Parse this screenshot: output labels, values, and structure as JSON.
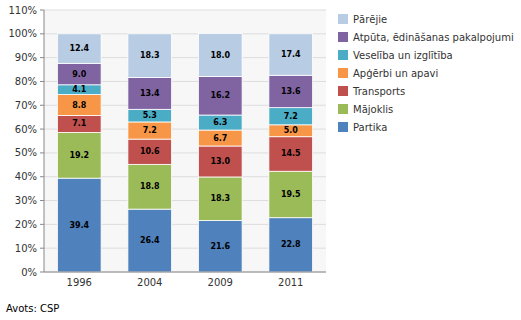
{
  "chart_data": {
    "type": "bar",
    "stacked": true,
    "data_labels": true,
    "grid": true,
    "legend": "right",
    "source": "Avots: CSP",
    "categories": [
      "1996",
      "2004",
      "2009",
      "2011"
    ],
    "series": [
      {
        "name": "Partika",
        "color": "#4F81BD",
        "values": [
          39.4,
          26.4,
          21.6,
          22.8
        ],
        "value_labels": [
          "39.4",
          "26.4",
          "21.6",
          "22.8"
        ]
      },
      {
        "name": "Mājoklis",
        "color": "#9BBB59",
        "values": [
          19.2,
          18.8,
          18.3,
          19.5
        ],
        "value_labels": [
          "19.2",
          "18.8",
          "18.3",
          "19.5"
        ]
      },
      {
        "name": "Transports",
        "color": "#C0504D",
        "values": [
          7.1,
          10.6,
          13.0,
          14.5
        ],
        "value_labels": [
          "7.1",
          "10.6",
          "13.0",
          "14.5"
        ]
      },
      {
        "name": "Apģērbi un apavi",
        "color": "#F79646",
        "values": [
          8.8,
          7.2,
          6.7,
          5.0
        ],
        "value_labels": [
          "8.8",
          "7.2",
          "6.7",
          "5.0"
        ]
      },
      {
        "name": "Veselība un izglītība",
        "color": "#4BACC6",
        "values": [
          4.1,
          5.3,
          6.3,
          7.2
        ],
        "value_labels": [
          "4.1",
          "5.3",
          "6.3",
          "7.2"
        ]
      },
      {
        "name": "Atpūta, ēdināšanas pakalpojumi",
        "color": "#8064A2",
        "values": [
          9.0,
          13.4,
          16.2,
          13.6
        ],
        "value_labels": [
          "9.0",
          "13.4",
          "16.2",
          "13.6"
        ]
      },
      {
        "name": "Pārējie",
        "color": "#B8CCE4",
        "values": [
          12.4,
          18.3,
          18.0,
          17.4
        ],
        "value_labels": [
          "12.4",
          "18.3",
          "18.0",
          "17.4"
        ]
      }
    ],
    "ylim": [
      0,
      110
    ],
    "yticks": [
      {
        "value": 0,
        "label": "0%"
      },
      {
        "value": 10,
        "label": "10%"
      },
      {
        "value": 20,
        "label": "20%"
      },
      {
        "value": 30,
        "label": "30%"
      },
      {
        "value": 40,
        "label": "40%"
      },
      {
        "value": 50,
        "label": "50%"
      },
      {
        "value": 60,
        "label": "60%"
      },
      {
        "value": 70,
        "label": "70%"
      },
      {
        "value": 80,
        "label": "80%"
      },
      {
        "value": 90,
        "label": "90%"
      },
      {
        "value": 100,
        "label": "100%"
      },
      {
        "value": 110,
        "label": "110%"
      }
    ]
  }
}
